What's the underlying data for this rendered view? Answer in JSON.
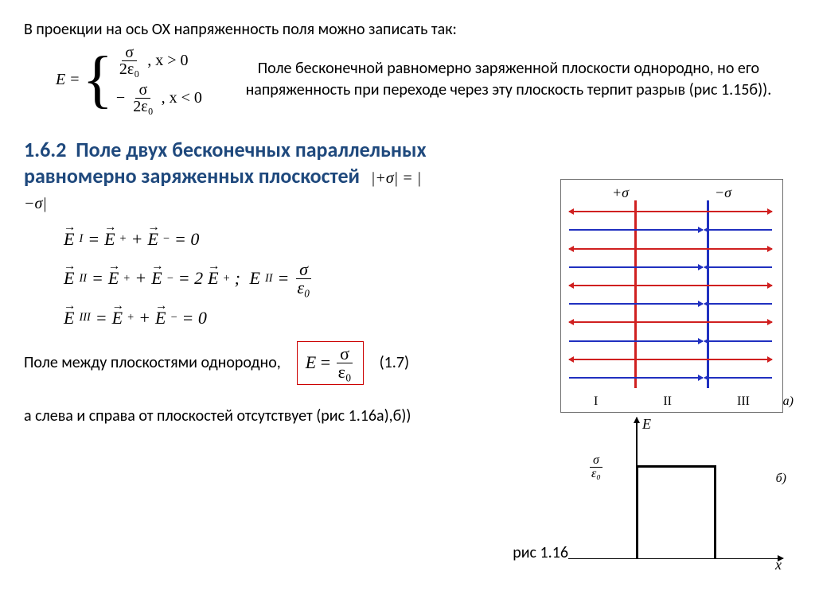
{
  "intro": "В проекции на ось ОХ напряженность поля можно записать так:",
  "piecewise": {
    "E": "E",
    "eq": "=",
    "case1_num": "σ",
    "case1_den": "2ε₀",
    "case1_cond": ", x > 0",
    "case2_neg": "−",
    "case2_num": "σ",
    "case2_den": "2ε₀",
    "case2_cond": ", x < 0"
  },
  "note1": "Поле бесконечной равномерно заряженной плоскости однородно, но его напряженность при переходе через эту плоскость терпит разрыв (рис 1.15б)).",
  "section": {
    "num": "1.6.2",
    "title": "Поле двух бесконечных параллельных равномерно заряженных плоскостей",
    "sigma_eq": "|+σ| = |−σ|",
    "color": "#1f497d"
  },
  "eqs": {
    "l1": "E⃗_I = E⃗₊ + E⃗₋ = 0",
    "l2a": "E⃗_II = E⃗₊ + E⃗₋ = 2E⃗₊ ;",
    "l2b_lhs": "E_II",
    "l2b_num": "σ",
    "l2b_den": "ε₀",
    "l3": "E⃗_III = E⃗₊ + E⃗₋ = 0"
  },
  "between": "Поле между плоскостями однородно,",
  "boxed": {
    "lhs": "E",
    "eq": "=",
    "num": "σ",
    "den": "ε₀"
  },
  "between_num": "(1.7)",
  "outside": "а слева и справа от плоскостей отсутствует (рис 1.16а),б))",
  "figref": "рис 1.16",
  "figure": {
    "sigma_plus": "+σ",
    "sigma_minus": "−σ",
    "roman": [
      "I",
      "II",
      "III"
    ],
    "a": "а)",
    "b": "б)",
    "colors": {
      "red": "#d02020",
      "blue": "#2030c0",
      "border": "#707070"
    },
    "arrow_rows": 10,
    "graph": {
      "ylabel_num": "σ",
      "ylabel_den": "ε₀",
      "E": "E",
      "x": "x"
    }
  }
}
